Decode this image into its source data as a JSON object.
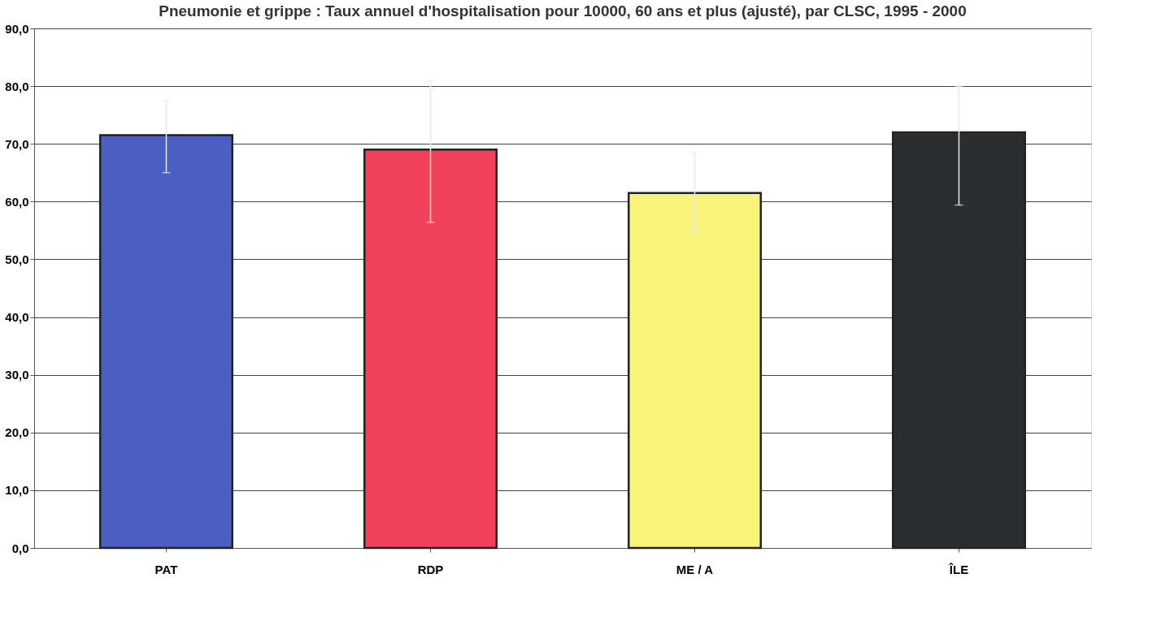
{
  "chart_data": {
    "type": "bar",
    "title": "Pneumonie et grippe : Taux annuel d'hospitalisation pour 10000, 60 ans et plus (ajusté), par CLSC, 1995 - 2000",
    "categories": [
      "PAT",
      "RDP",
      "ME / A",
      "ÎLE"
    ],
    "values": [
      71.5,
      69.0,
      61.5,
      72.0
    ],
    "colors": [
      "#4a5fc1",
      "#f0405a",
      "#f8f47a",
      "#2b2e30"
    ],
    "errors": [
      [
        65.0,
        77.5
      ],
      [
        56.4,
        81.0
      ],
      [
        54.6,
        68.5
      ],
      [
        59.4,
        80.0
      ]
    ],
    "ylim": [
      0,
      90
    ],
    "yticks": [
      {
        "value": 0,
        "label": "0,0"
      },
      {
        "value": 10,
        "label": "10,0"
      },
      {
        "value": 20,
        "label": "20,0"
      },
      {
        "value": 30,
        "label": "30,0"
      },
      {
        "value": 40,
        "label": "40,0"
      },
      {
        "value": 50,
        "label": "50,0"
      },
      {
        "value": 60,
        "label": "60,0"
      },
      {
        "value": 70,
        "label": "70,0"
      },
      {
        "value": 80,
        "label": "80,0"
      },
      {
        "value": 90,
        "label": "90,0"
      }
    ],
    "grid": "y"
  }
}
